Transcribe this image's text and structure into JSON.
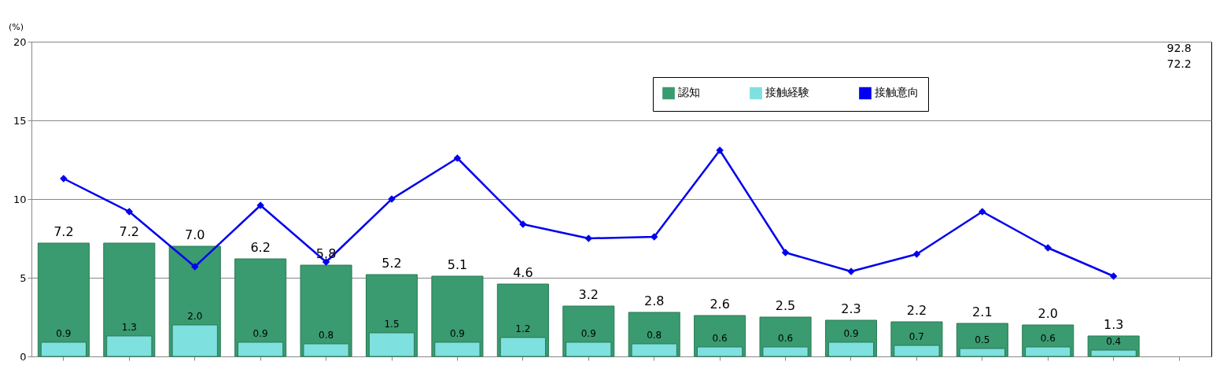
{
  "chart_data": {
    "type": "bar",
    "ylabel": "(%)",
    "categories": [
      null,
      null,
      null,
      null,
      null,
      null,
      null,
      null,
      null,
      null,
      null,
      null,
      null,
      null,
      null,
      null,
      null,
      null
    ],
    "series": [
      {
        "name": "認知",
        "type": "bar",
        "color": "#3a9a70",
        "values": [
          7.2,
          7.2,
          7.0,
          6.2,
          5.8,
          5.2,
          5.1,
          4.6,
          3.2,
          2.8,
          2.6,
          2.5,
          2.3,
          2.2,
          2.1,
          2.0,
          1.3,
          null
        ],
        "value_labels": [
          "7.2",
          "7.2",
          "7.0",
          "6.2",
          "5.8",
          "5.2",
          "5.1",
          "4.6",
          "3.2",
          "2.8",
          "2.6",
          "2.5",
          "2.3",
          "2.2",
          "2.1",
          "2.0",
          "1.3",
          null
        ]
      },
      {
        "name": "接触経験",
        "type": "bar",
        "color": "#7fe0e0",
        "values": [
          0.9,
          1.3,
          2.0,
          0.9,
          0.8,
          1.5,
          0.9,
          1.2,
          0.9,
          0.8,
          0.6,
          0.6,
          0.9,
          0.7,
          0.5,
          0.6,
          0.4,
          null
        ],
        "value_labels": [
          "0.9",
          "1.3",
          "2.0",
          "0.9",
          "0.8",
          "1.5",
          "0.9",
          "1.2",
          "0.9",
          "0.8",
          "0.6",
          "0.6",
          "0.9",
          "0.7",
          "0.5",
          "0.6",
          "0.4",
          null
        ]
      },
      {
        "name": "接触意向",
        "type": "line",
        "color": "#0000ee",
        "marker": "diamond",
        "values": [
          11.3,
          9.2,
          5.7,
          9.6,
          6.0,
          10.0,
          12.6,
          8.4,
          7.5,
          7.6,
          13.1,
          6.6,
          5.4,
          6.5,
          9.2,
          6.9,
          5.1,
          null
        ]
      }
    ],
    "annotations": [
      "92.8",
      "72.2"
    ],
    "ylim": [
      0,
      20
    ],
    "yticks": [
      0,
      5,
      10,
      15,
      20
    ],
    "grid": "y",
    "legend": "top right",
    "tick_labels": "y"
  }
}
